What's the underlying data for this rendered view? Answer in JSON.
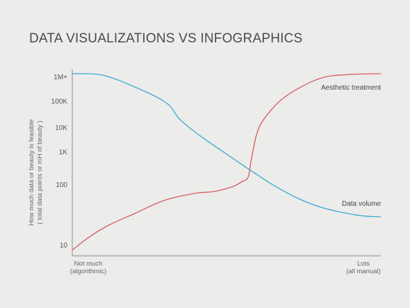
{
  "chart_data": {
    "type": "line",
    "title": "DATA VISUALIZATIONS VS INFOGRAPHICS",
    "ylabel": "How much data or beauty is feasible",
    "ylabel_sub": "( total data points or mH of beauty )",
    "x_tick_labels": [
      {
        "line1": "Not much",
        "line2": "(algorithmic)"
      },
      {
        "line1": "Lots",
        "line2": "(all manual)"
      }
    ],
    "y_ticks": [
      {
        "label": "10",
        "value": 10
      },
      {
        "label": "100",
        "value": 100
      },
      {
        "label": "1K",
        "value": 1000
      },
      {
        "label": "10K",
        "value": 10000
      },
      {
        "label": "100K",
        "value": 100000
      },
      {
        "label": "1M+",
        "value": 1000000
      }
    ],
    "y_scale": "log",
    "x_range": [
      0,
      1
    ],
    "grid": false,
    "series": [
      {
        "name": "Data volume",
        "color": "#3aa7d3",
        "x": [
          0,
          0.04,
          0.1,
          0.18,
          0.3,
          0.35,
          0.42,
          0.5,
          0.55,
          0.6,
          0.66,
          0.73,
          0.8,
          0.87,
          0.94,
          1.0
        ],
        "y": [
          1000000,
          1000000,
          900000,
          500000,
          150000,
          45000,
          14000,
          4500,
          2200,
          1100,
          500,
          230,
          130,
          90,
          70,
          65
        ]
      },
      {
        "name": "Aesthetic treatment",
        "color": "#d9595d",
        "x": [
          0,
          0.06,
          0.12,
          0.2,
          0.3,
          0.4,
          0.46,
          0.52,
          0.55,
          0.57,
          0.58,
          0.6,
          0.63,
          0.68,
          0.75,
          0.82,
          0.9,
          1.0
        ],
        "y": [
          7,
          18,
          38,
          80,
          200,
          320,
          360,
          500,
          700,
          950,
          3000,
          20000,
          60000,
          180000,
          450000,
          800000,
          950000,
          1000000
        ]
      }
    ]
  }
}
